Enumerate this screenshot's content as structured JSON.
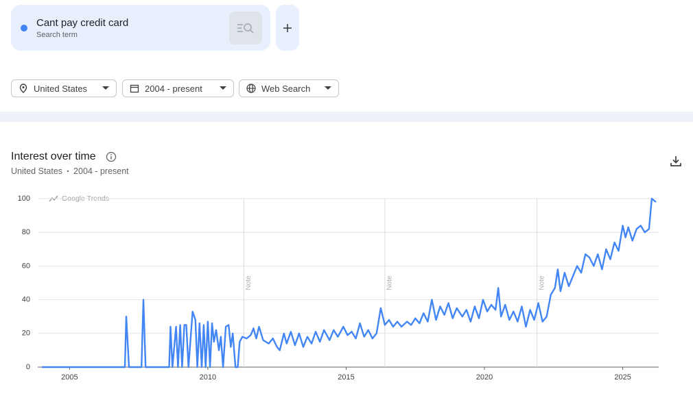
{
  "search": {
    "term": "Cant pay credit card",
    "caption": "Search term"
  },
  "filters": [
    "United States",
    "2004 - present",
    "Web Search"
  ],
  "chart_data": {
    "type": "line",
    "title": "Interest over time",
    "subtitle": [
      "United States",
      "2004 - present"
    ],
    "watermark": "Google Trends",
    "grid": true,
    "xlim": [
      2003.85,
      2026.3
    ],
    "xticks": [
      2005,
      2010,
      2015,
      2020,
      2025
    ],
    "ylim": [
      0,
      100
    ],
    "yticks": [
      0,
      20,
      40,
      60,
      80,
      100
    ],
    "notes": [
      {
        "x": 2011.3,
        "label": "Note"
      },
      {
        "x": 2016.4,
        "label": "Note"
      },
      {
        "x": 2021.9,
        "label": "Note"
      }
    ],
    "series": [
      {
        "color": "#4285f4",
        "x": [
          2004.0,
          2007.0,
          2007.05,
          2007.15,
          2007.6,
          2007.67,
          2007.75,
          2008.6,
          2008.65,
          2008.72,
          2008.85,
          2008.92,
          2009.0,
          2009.07,
          2009.15,
          2009.22,
          2009.3,
          2009.45,
          2009.55,
          2009.62,
          2009.7,
          2009.78,
          2009.85,
          2009.92,
          2010.0,
          2010.08,
          2010.15,
          2010.22,
          2010.3,
          2010.4,
          2010.47,
          2010.55,
          2010.65,
          2010.75,
          2010.83,
          2010.9,
          2011.0,
          2011.08,
          2011.15,
          2011.25,
          2011.4,
          2011.55,
          2011.65,
          2011.75,
          2011.85,
          2012.0,
          2012.2,
          2012.35,
          2012.5,
          2012.6,
          2012.75,
          2012.85,
          2013.0,
          2013.15,
          2013.3,
          2013.45,
          2013.6,
          2013.75,
          2013.9,
          2014.05,
          2014.2,
          2014.4,
          2014.55,
          2014.7,
          2014.9,
          2015.05,
          2015.2,
          2015.35,
          2015.5,
          2015.65,
          2015.8,
          2015.95,
          2016.1,
          2016.25,
          2016.4,
          2016.55,
          2016.7,
          2016.85,
          2017.0,
          2017.2,
          2017.35,
          2017.5,
          2017.65,
          2017.8,
          2017.95,
          2018.1,
          2018.25,
          2018.4,
          2018.55,
          2018.7,
          2018.85,
          2019.0,
          2019.2,
          2019.35,
          2019.5,
          2019.65,
          2019.8,
          2019.95,
          2020.1,
          2020.25,
          2020.4,
          2020.5,
          2020.6,
          2020.75,
          2020.9,
          2021.05,
          2021.2,
          2021.35,
          2021.5,
          2021.65,
          2021.8,
          2021.95,
          2022.1,
          2022.25,
          2022.4,
          2022.55,
          2022.65,
          2022.75,
          2022.9,
          2023.05,
          2023.2,
          2023.35,
          2023.5,
          2023.65,
          2023.8,
          2023.95,
          2024.1,
          2024.25,
          2024.4,
          2024.55,
          2024.7,
          2024.85,
          2025.0,
          2025.1,
          2025.2,
          2025.35,
          2025.5,
          2025.65,
          2025.8,
          2025.95,
          2026.05,
          2026.2
        ],
        "values": [
          0,
          0,
          30,
          0,
          0,
          40,
          0,
          0,
          24,
          0,
          24,
          0,
          25,
          0,
          25,
          25,
          0,
          33,
          28,
          0,
          26,
          0,
          25,
          0,
          27,
          0,
          26,
          15,
          22,
          10,
          18,
          0,
          24,
          25,
          12,
          20,
          0,
          0,
          15,
          18,
          17,
          19,
          23,
          17,
          24,
          16,
          14,
          17,
          12,
          10,
          20,
          14,
          21,
          13,
          20,
          12,
          18,
          14,
          21,
          15,
          22,
          16,
          22,
          18,
          24,
          19,
          21,
          17,
          26,
          18,
          22,
          17,
          20,
          35,
          25,
          28,
          24,
          27,
          24,
          27,
          25,
          29,
          26,
          32,
          27,
          40,
          28,
          36,
          31,
          38,
          29,
          35,
          30,
          34,
          27,
          36,
          29,
          40,
          33,
          37,
          34,
          47,
          30,
          37,
          28,
          33,
          27,
          36,
          24,
          34,
          28,
          38,
          27,
          30,
          43,
          47,
          58,
          45,
          56,
          48,
          54,
          60,
          56,
          67,
          65,
          60,
          67,
          58,
          70,
          64,
          74,
          69,
          84,
          77,
          83,
          75,
          82,
          84,
          80,
          82,
          100,
          98
        ]
      }
    ]
  }
}
